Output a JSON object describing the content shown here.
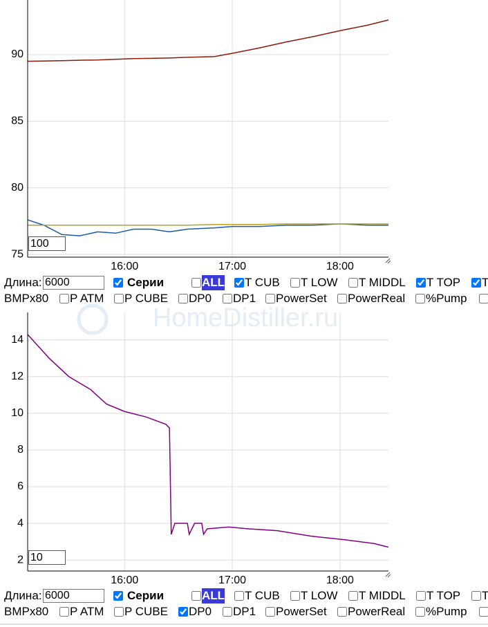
{
  "watermark": "HomeDistiller.ru",
  "chart_data": [
    {
      "type": "line",
      "grid": true,
      "xlim": [
        "15:06",
        "18:27"
      ],
      "xticks": [
        "16:00",
        "17:00",
        "18:00"
      ],
      "ylim": [
        74.8,
        94.1
      ],
      "yticks": [
        75,
        80,
        85,
        90
      ],
      "x": [
        "15:06",
        "15:15",
        "15:25",
        "15:35",
        "15:45",
        "15:55",
        "16:05",
        "16:15",
        "16:25",
        "16:35",
        "16:50",
        "17:00",
        "17:15",
        "17:30",
        "17:45",
        "18:00",
        "18:15",
        "18:27"
      ],
      "series": [
        {
          "color": "#8b1a0a",
          "values": [
            89.5,
            89.52,
            89.55,
            89.58,
            89.6,
            89.65,
            89.7,
            89.72,
            89.75,
            89.8,
            89.85,
            90.1,
            90.5,
            90.95,
            91.35,
            91.8,
            92.2,
            92.6
          ]
        },
        {
          "color": "#1f5aa6",
          "values": [
            77.6,
            77.2,
            76.5,
            76.4,
            76.7,
            76.6,
            76.9,
            76.9,
            76.7,
            76.9,
            77.0,
            77.1,
            77.1,
            77.2,
            77.2,
            77.3,
            77.2,
            77.2
          ]
        },
        {
          "color": "#b8a020",
          "values": [
            77.2,
            77.2,
            77.2,
            77.2,
            77.2,
            77.2,
            77.2,
            77.2,
            77.2,
            77.2,
            77.25,
            77.25,
            77.25,
            77.3,
            77.3,
            77.3,
            77.3,
            77.3
          ]
        }
      ]
    },
    {
      "type": "line",
      "grid": true,
      "xlim": [
        "15:06",
        "18:27"
      ],
      "xticks": [
        "16:00",
        "17:00",
        "18:00"
      ],
      "ylim": [
        1.4,
        15.5
      ],
      "yticks": [
        2,
        4,
        6,
        8,
        10,
        12,
        14
      ],
      "x": [
        "15:06",
        "15:18",
        "15:29",
        "15:41",
        "15:50",
        "16:00",
        "16:12",
        "16:23",
        "16:25",
        "16:26",
        "16:28",
        "16:35",
        "16:36",
        "16:39",
        "16:43",
        "16:44",
        "16:46",
        "16:58",
        "17:09",
        "17:25",
        "17:44",
        "18:03",
        "18:19",
        "18:27"
      ],
      "series": [
        {
          "color": "#800080",
          "values": [
            14.3,
            13.0,
            12.0,
            11.3,
            10.5,
            10.1,
            9.8,
            9.4,
            9.2,
            3.4,
            4.0,
            4.0,
            3.4,
            4.0,
            4.0,
            3.4,
            3.7,
            3.8,
            3.7,
            3.6,
            3.3,
            3.1,
            2.9,
            2.7
          ]
        }
      ]
    }
  ],
  "controls": [
    {
      "window": "100",
      "length_label": "Длина:",
      "length_value": "6000",
      "series_label": "Серии",
      "series_checked": true,
      "rows": [
        [
          {
            "label": "ALL",
            "checked": false,
            "highlight": true
          },
          {
            "label": "T CUB",
            "checked": true
          },
          {
            "label": "T LOW",
            "checked": false
          },
          {
            "label": "T MIDDL",
            "checked": false
          },
          {
            "label": "T TOP",
            "checked": true
          },
          {
            "label": "T",
            "checked": true
          }
        ],
        [
          {
            "label": "BMPx80"
          },
          {
            "label": "P ATM",
            "checked": false
          },
          {
            "label": "P CUBE",
            "checked": false
          },
          {
            "label": "DP0",
            "checked": false
          },
          {
            "label": "DP1",
            "checked": false
          },
          {
            "label": "PowerSet",
            "checked": false
          },
          {
            "label": "PowerReal",
            "checked": false
          },
          {
            "label": "%Pump",
            "checked": false
          },
          {
            "checked": false
          }
        ]
      ]
    },
    {
      "window": "10",
      "length_label": "Длина:",
      "length_value": "6000",
      "series_label": "Серии",
      "series_checked": true,
      "rows": [
        [
          {
            "label": "ALL",
            "checked": false,
            "highlight": true
          },
          {
            "label": "T CUB",
            "checked": false
          },
          {
            "label": "T LOW",
            "checked": false
          },
          {
            "label": "T MIDDL",
            "checked": false
          },
          {
            "label": "T TOP",
            "checked": false
          },
          {
            "label": "T",
            "checked": false
          }
        ],
        [
          {
            "label": "BMPx80"
          },
          {
            "label": "P ATM",
            "checked": false
          },
          {
            "label": "P CUBE",
            "checked": false
          },
          {
            "label": "DP0",
            "checked": true
          },
          {
            "label": "DP1",
            "checked": false
          },
          {
            "label": "PowerSet",
            "checked": false
          },
          {
            "label": "PowerReal",
            "checked": false
          },
          {
            "label": "%Pump",
            "checked": false
          },
          {
            "checked": false
          }
        ]
      ]
    }
  ]
}
